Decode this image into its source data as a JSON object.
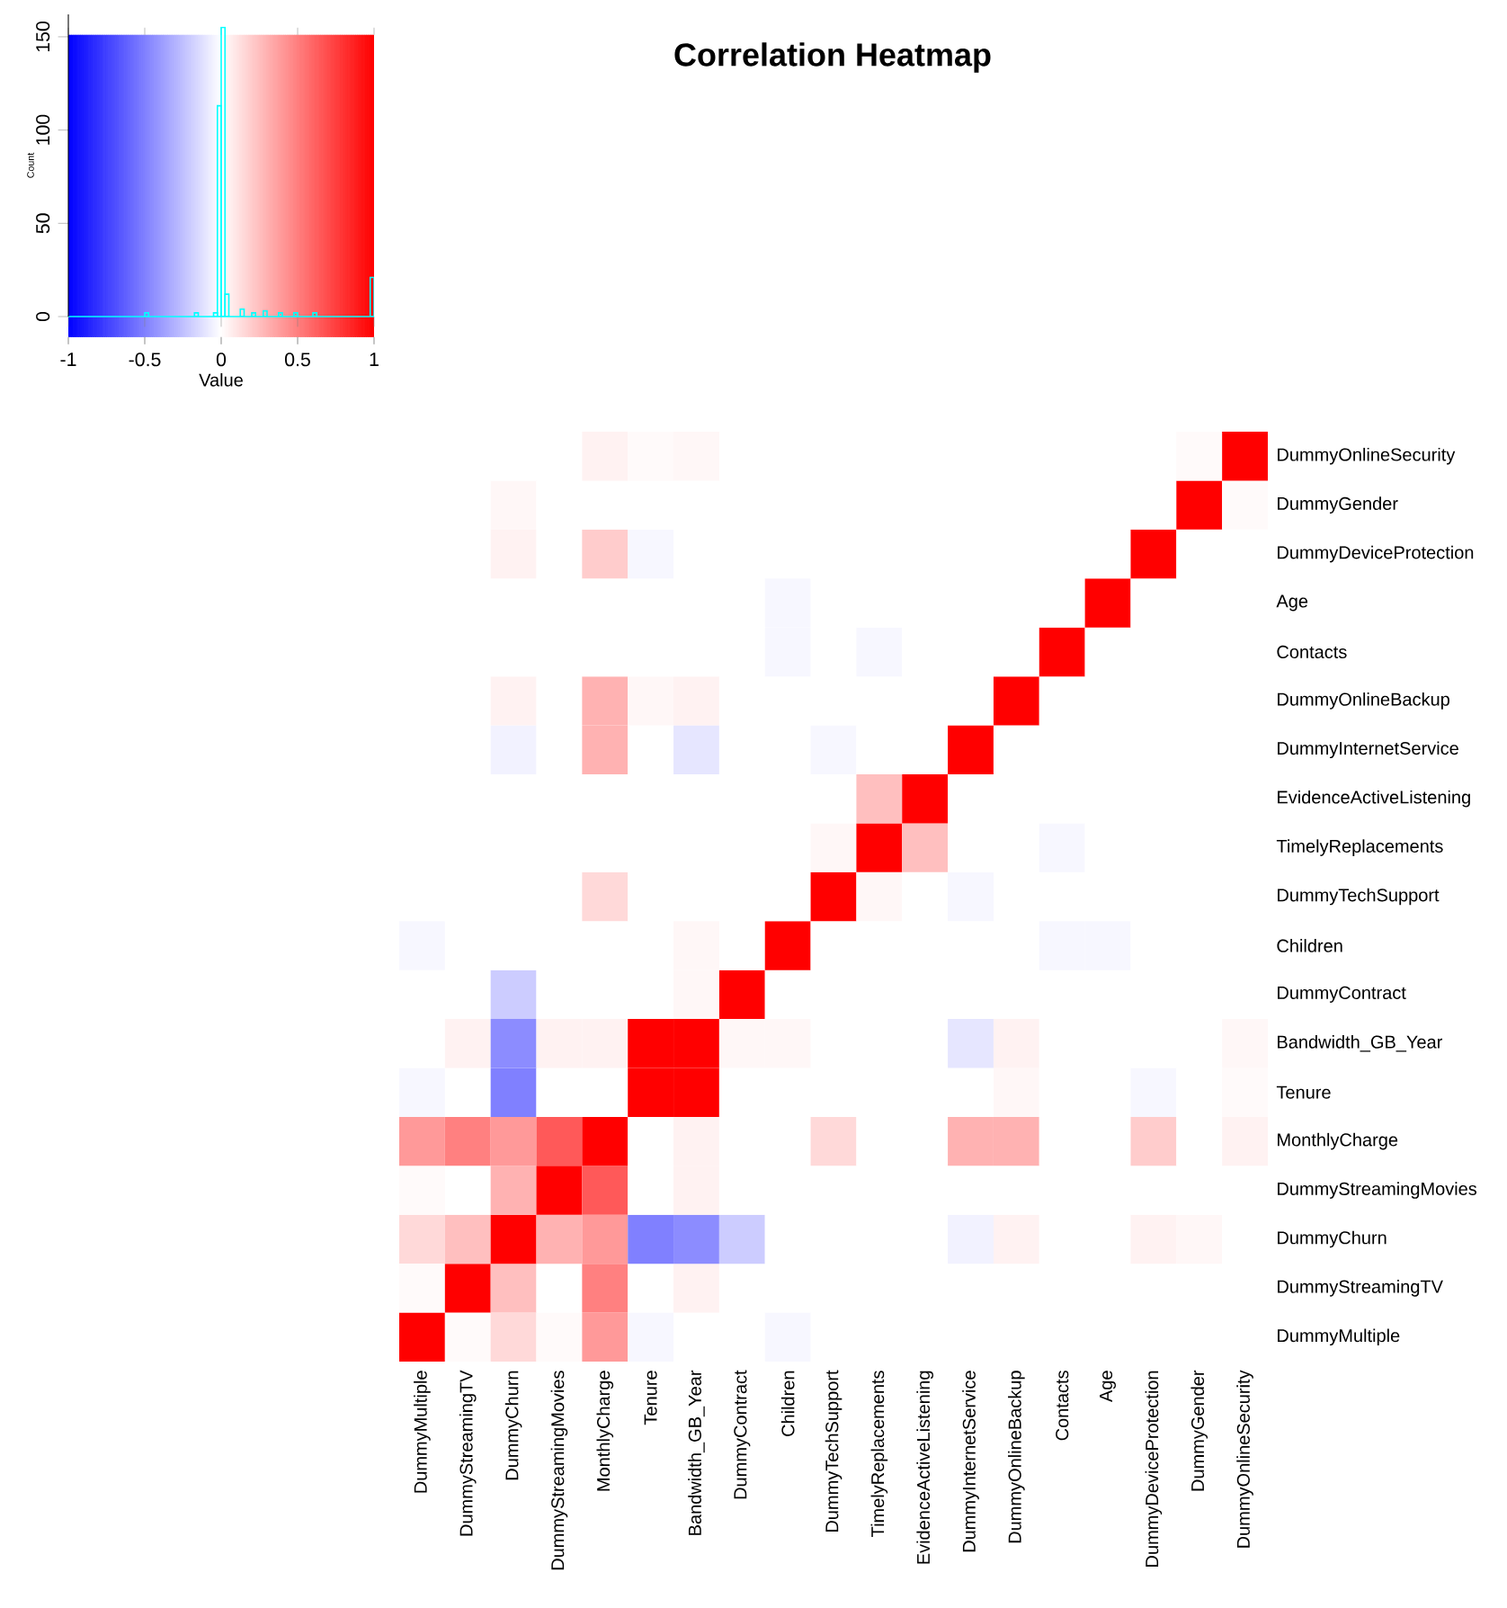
{
  "chart_data": [
    {
      "type": "heatmap",
      "title": "Correlation Heatmap",
      "clabel": "Value",
      "clim": [
        -1,
        1
      ],
      "cticks": [
        -1,
        -0.5,
        0,
        0.5,
        1
      ],
      "categories": [
        "DummyMultiple",
        "DummyStreamingTV",
        "DummyChurn",
        "DummyStreamingMovies",
        "MonthlyCharge",
        "Tenure",
        "Bandwidth_GB_Year",
        "DummyContract",
        "Children",
        "DummyTechSupport",
        "TimelyReplacements",
        "EvidenceActiveListening",
        "DummyInternetService",
        "DummyOnlineBackup",
        "Contacts",
        "Age",
        "DummyDeviceProtection",
        "DummyGender",
        "DummyOnlineSecurity"
      ],
      "y_categories": [
        "DummyOnlineSecurity",
        "DummyGender",
        "DummyDeviceProtection",
        "Age",
        "Contacts",
        "DummyOnlineBackup",
        "DummyInternetService",
        "EvidenceActiveListening",
        "TimelyReplacements",
        "DummyTechSupport",
        "Children",
        "DummyContract",
        "Bandwidth_GB_Year",
        "Tenure",
        "MonthlyCharge",
        "DummyStreamingMovies",
        "DummyChurn",
        "DummyStreamingTV",
        "DummyMultiple"
      ],
      "cells": [
        [
          0,
          0,
          0,
          0,
          0.05,
          0.02,
          0.03,
          0,
          0,
          0,
          0,
          0,
          0,
          0,
          0,
          0,
          0,
          0.02,
          1
        ],
        [
          0,
          0,
          0.03,
          0,
          0,
          0,
          0,
          0,
          0,
          0,
          0,
          0,
          0,
          0,
          0,
          0,
          0,
          1,
          0.02
        ],
        [
          0,
          0,
          0.05,
          0,
          0.2,
          -0.03,
          0,
          0,
          0,
          0,
          0,
          0,
          0,
          0,
          0,
          0,
          1,
          0,
          0
        ],
        [
          0,
          0,
          0,
          0,
          0,
          0,
          0,
          0,
          -0.03,
          0,
          0,
          0,
          0,
          0,
          0,
          1,
          0,
          0,
          0
        ],
        [
          0,
          0,
          0,
          0,
          0,
          0,
          0,
          0,
          -0.03,
          0,
          -0.03,
          0,
          0,
          0,
          1,
          0,
          0,
          0,
          0
        ],
        [
          0,
          0,
          0.05,
          0,
          0.3,
          0.03,
          0.05,
          0,
          0,
          0,
          0,
          0,
          0,
          1,
          0,
          0,
          0,
          0,
          0
        ],
        [
          0,
          0,
          -0.05,
          0,
          0.3,
          0,
          -0.1,
          0,
          0,
          -0.03,
          0,
          0,
          1,
          0,
          0,
          0,
          0,
          0,
          0
        ],
        [
          0,
          0,
          0,
          0,
          0,
          0,
          0,
          0,
          0,
          0,
          0.25,
          1,
          0,
          0,
          0,
          0,
          0,
          0,
          0
        ],
        [
          0,
          0,
          0,
          0,
          0,
          0,
          0,
          0,
          0,
          0.03,
          1,
          0.25,
          0,
          0,
          -0.03,
          0,
          0,
          0,
          0
        ],
        [
          0,
          0,
          0,
          0,
          0.15,
          0,
          0,
          0,
          0,
          1,
          0.03,
          0,
          -0.03,
          0,
          0,
          0,
          0,
          0,
          0
        ],
        [
          -0.03,
          0,
          0,
          0,
          0,
          0,
          0.03,
          0,
          1,
          0,
          0,
          0,
          0,
          0,
          -0.03,
          -0.03,
          0,
          0,
          0
        ],
        [
          0,
          0,
          -0.2,
          0,
          0,
          0,
          0.03,
          1,
          0,
          0,
          0,
          0,
          0,
          0,
          0,
          0,
          0,
          0,
          0
        ],
        [
          0,
          0.05,
          -0.45,
          0.05,
          0.05,
          1,
          1,
          0.03,
          0.03,
          0,
          0,
          0,
          -0.1,
          0.05,
          0,
          0,
          0,
          0,
          0.03
        ],
        [
          -0.03,
          0,
          -0.5,
          0,
          0,
          1,
          1,
          0,
          0,
          0,
          0,
          0,
          0,
          0.03,
          0,
          0,
          -0.03,
          0,
          0.02
        ],
        [
          0.4,
          0.5,
          0.4,
          0.65,
          1,
          0,
          0.05,
          0,
          0,
          0.15,
          0,
          0,
          0.3,
          0.3,
          0,
          0,
          0.2,
          0,
          0.05
        ],
        [
          0.02,
          0,
          0.3,
          1,
          0.65,
          0,
          0.05,
          0,
          0,
          0,
          0,
          0,
          0,
          0,
          0,
          0,
          0,
          0,
          0
        ],
        [
          0.15,
          0.25,
          1,
          0.3,
          0.4,
          -0.5,
          -0.45,
          -0.2,
          0,
          0,
          0,
          0,
          -0.05,
          0.05,
          0,
          0,
          0.05,
          0.03,
          0
        ],
        [
          0.02,
          1,
          0.25,
          0,
          0.5,
          0,
          0.05,
          0,
          0,
          0,
          0,
          0,
          0,
          0,
          0,
          0,
          0,
          0,
          0
        ],
        [
          1,
          0.02,
          0.15,
          0.02,
          0.4,
          -0.03,
          0,
          0,
          -0.03,
          0,
          0,
          0,
          0,
          0,
          0,
          0,
          0,
          0,
          0
        ]
      ]
    },
    {
      "type": "histogram",
      "ylabel": "Count",
      "color": "#00ffff",
      "xlim": [
        -1,
        1
      ],
      "xticks": [
        -1,
        -0.5,
        0,
        0.5,
        1
      ],
      "ylim": [
        0,
        162
      ],
      "yticks": [
        0,
        50,
        100,
        150
      ],
      "tick_labels": "y",
      "bins": [
        -0.5,
        -0.475,
        -0.175,
        -0.15,
        -0.05,
        -0.025,
        0,
        0.025,
        0.05,
        0.125,
        0.15,
        0.2,
        0.225,
        0.275,
        0.3,
        0.375,
        0.4,
        0.475,
        0.5,
        0.6,
        0.625,
        0.975,
        1
      ],
      "values": [
        2,
        0,
        2,
        0,
        2,
        113,
        155,
        12,
        0,
        4,
        0,
        2,
        0,
        3,
        0,
        2,
        0,
        2,
        0,
        2,
        0,
        21
      ]
    }
  ]
}
